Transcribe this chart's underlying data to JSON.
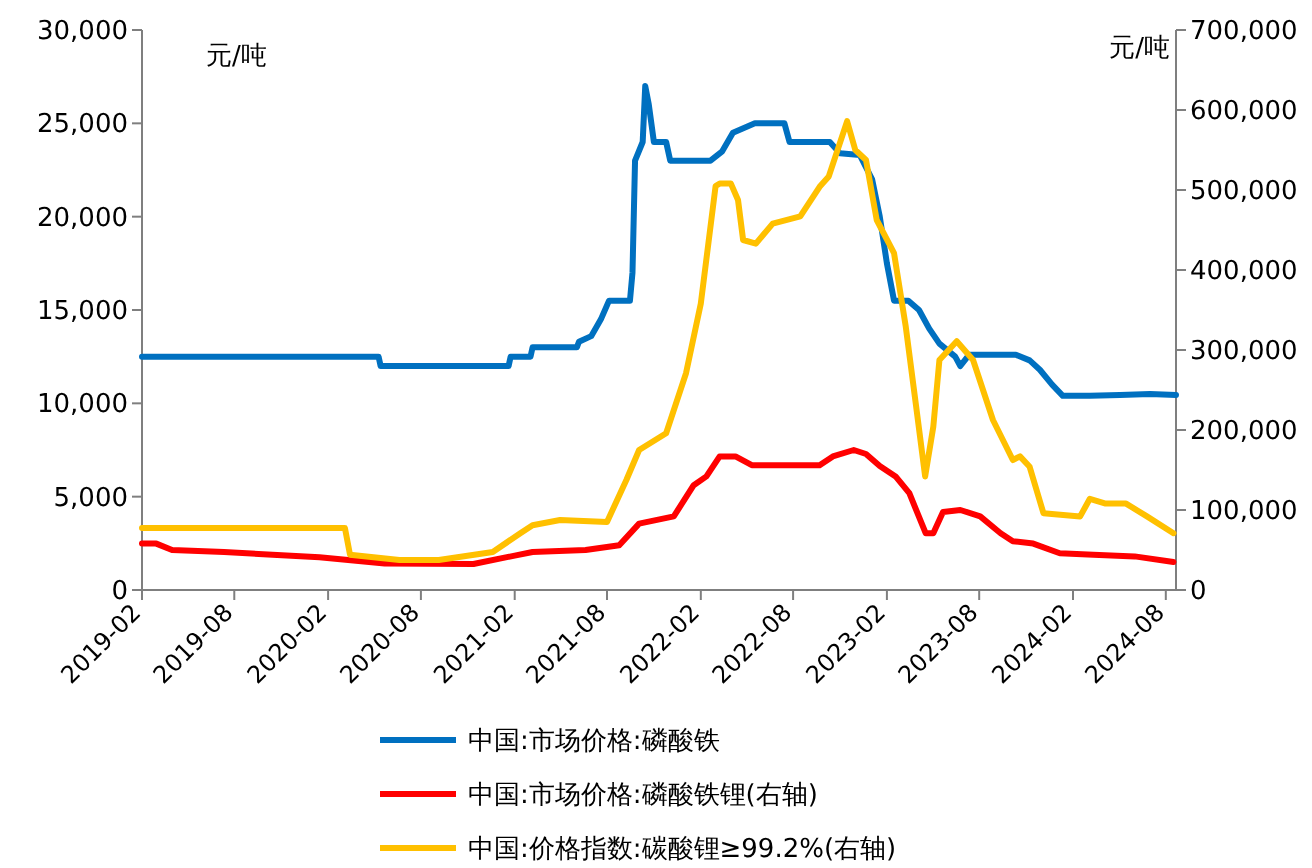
{
  "chart_data": {
    "type": "line",
    "ylabel": "元/吨",
    "y2label": "元/吨",
    "legend": "bottom",
    "grid": false,
    "xlim": [
      "2019-02-01",
      "2024-08-21"
    ],
    "xticks": [
      {
        "value": "2019-02",
        "label": "2019-02"
      },
      {
        "value": "2019-08",
        "label": "2019-08"
      },
      {
        "value": "2020-02",
        "label": "2020-02"
      },
      {
        "value": "2020-08",
        "label": "2020-08"
      },
      {
        "value": "2021-02",
        "label": "2021-02"
      },
      {
        "value": "2021-08",
        "label": "2021-08"
      },
      {
        "value": "2022-02",
        "label": "2022-02"
      },
      {
        "value": "2022-08",
        "label": "2022-08"
      },
      {
        "value": "2023-02",
        "label": "2023-02"
      },
      {
        "value": "2023-08",
        "label": "2023-08"
      },
      {
        "value": "2024-02",
        "label": "2024-02"
      },
      {
        "value": "2024-08",
        "label": "2024-08"
      }
    ],
    "ylim": [
      0,
      30000
    ],
    "yticks": [
      0,
      {
        "value": 5000,
        "label": "5,000"
      },
      {
        "value": 10000,
        "label": "10,000"
      },
      {
        "value": 15000,
        "label": "15,000"
      },
      {
        "value": 20000,
        "label": "20,000"
      },
      {
        "value": 25000,
        "label": "25,000"
      },
      {
        "value": 30000,
        "label": "30,000"
      }
    ],
    "y2lim": [
      0,
      700000
    ],
    "y2ticks": [
      0,
      {
        "value": 100000,
        "label": "100,000"
      },
      {
        "value": 200000,
        "label": "200,000"
      },
      {
        "value": 300000,
        "label": "300,000"
      },
      {
        "value": 400000,
        "label": "400,000"
      },
      {
        "value": 500000,
        "label": "500,000"
      },
      {
        "value": 600000,
        "label": "600,000"
      },
      {
        "value": 700000,
        "label": "700,000"
      }
    ],
    "series": [
      {
        "name": "中国:市场价格:磷酸铁",
        "color": "#0070c0",
        "x": [
          "2019-02-01",
          "2020-05-10",
          "2020-05-14",
          "2021-01-20",
          "2021-01-24",
          "2021-03-04",
          "2021-03-08",
          "2021-06-03",
          "2021-06-07",
          "2021-07-01",
          "2021-07-20",
          "2021-08-05",
          "2021-09-15",
          "2021-09-20",
          "2021-09-25",
          "2021-10-10",
          "2021-10-15",
          "2021-10-22",
          "2021-11-01",
          "2021-11-25",
          "2021-12-03",
          "2022-02-20",
          "2022-03-15",
          "2022-04-05",
          "2022-05-18",
          "2022-07-15",
          "2022-07-25",
          "2022-10-12",
          "2022-11-01",
          "2022-12-10",
          "2023-01-03",
          "2023-01-18",
          "2023-02-01",
          "2023-02-15",
          "2023-03-15",
          "2023-04-05",
          "2023-04-25",
          "2023-05-15",
          "2023-06-15",
          "2023-06-25",
          "2023-07-12",
          "2023-10-12",
          "2023-11-08",
          "2023-11-28",
          "2023-12-22",
          "2024-01-12",
          "2024-03-05",
          "2024-05-03",
          "2024-07-01",
          "2024-08-21"
        ],
        "values": [
          12500,
          12500,
          12000,
          12000,
          12500,
          12500,
          13000,
          13000,
          13300,
          13600,
          14500,
          15500,
          15500,
          17000,
          23000,
          24000,
          27000,
          26000,
          24000,
          24000,
          23000,
          23000,
          23500,
          24500,
          25000,
          25000,
          24000,
          24000,
          23400,
          23300,
          22000,
          20000,
          17500,
          15500,
          15500,
          15000,
          14000,
          13200,
          12500,
          12000,
          12600,
          12600,
          12300,
          11800,
          11000,
          10400,
          10400,
          10450,
          10500,
          10450
        ]
      },
      {
        "name": "中国:市场价格:磷酸铁锂(右轴)",
        "color": "#ff0000",
        "axis": "y2",
        "x": [
          "2019-02-01",
          "2019-03-01",
          "2019-04-01",
          "2019-07-12",
          "2019-10-15",
          "2020-01-15",
          "2020-05-22",
          "2020-11-12",
          "2021-02-01",
          "2021-03-08",
          "2021-06-20",
          "2021-08-25",
          "2021-10-03",
          "2021-12-10",
          "2022-01-18",
          "2022-02-12",
          "2022-03-10",
          "2022-04-10",
          "2022-05-12",
          "2022-09-22",
          "2022-10-18",
          "2022-11-28",
          "2022-12-22",
          "2023-01-18",
          "2023-02-18",
          "2023-03-17",
          "2023-04-18",
          "2023-05-03",
          "2023-05-22",
          "2023-06-25",
          "2023-08-03",
          "2023-09-12",
          "2023-10-06",
          "2023-11-15",
          "2024-01-06",
          "2024-03-12",
          "2024-06-01",
          "2024-08-16"
        ],
        "values": [
          58000,
          58000,
          50000,
          47500,
          44000,
          41000,
          33000,
          32500,
          43000,
          47500,
          50000,
          56000,
          83000,
          92000,
          131000,
          142000,
          167000,
          167000,
          156000,
          156000,
          167000,
          175000,
          170000,
          155000,
          142000,
          121000,
          71000,
          71000,
          97500,
          100000,
          92000,
          71000,
          61000,
          58000,
          46000,
          44000,
          42000,
          35000
        ]
      },
      {
        "name": "中国:价格指数:碳酸锂≥99.2%(右轴)",
        "color": "#ffc000",
        "axis": "y2",
        "x": [
          "2019-02-01",
          "2020-03-05",
          "2020-03-15",
          "2020-06-20",
          "2020-09-05",
          "2020-12-20",
          "2021-02-12",
          "2021-03-08",
          "2021-05-01",
          "2021-08-01",
          "2021-09-08",
          "2021-10-03",
          "2021-11-25",
          "2022-01-03",
          "2022-02-01",
          "2022-03-02",
          "2022-03-10",
          "2022-04-01",
          "2022-04-15",
          "2022-04-25",
          "2022-05-20",
          "2022-06-22",
          "2022-08-15",
          "2022-09-22",
          "2022-10-10",
          "2022-11-15",
          "2022-12-01",
          "2022-12-22",
          "2023-01-12",
          "2023-02-15",
          "2023-03-10",
          "2023-04-01",
          "2023-04-17",
          "2023-05-03",
          "2023-05-15",
          "2023-06-18",
          "2023-07-20",
          "2023-08-28",
          "2023-10-06",
          "2023-10-20",
          "2023-11-08",
          "2023-12-05",
          "2024-02-15",
          "2024-03-05",
          "2024-04-05",
          "2024-05-15",
          "2024-06-25",
          "2024-08-16"
        ],
        "values": [
          77500,
          77500,
          44000,
          37500,
          37500,
          47500,
          71000,
          81000,
          87500,
          85000,
          137500,
          175000,
          196000,
          271000,
          358000,
          505000,
          508000,
          508000,
          487500,
          437500,
          433000,
          458000,
          467000,
          504000,
          517000,
          586000,
          550000,
          537500,
          462500,
          421000,
          329000,
          221000,
          142000,
          204000,
          287500,
          311000,
          287500,
          212500,
          162500,
          167000,
          154000,
          96000,
          92000,
          114000,
          108000,
          108000,
          92000,
          71000
        ]
      }
    ]
  }
}
